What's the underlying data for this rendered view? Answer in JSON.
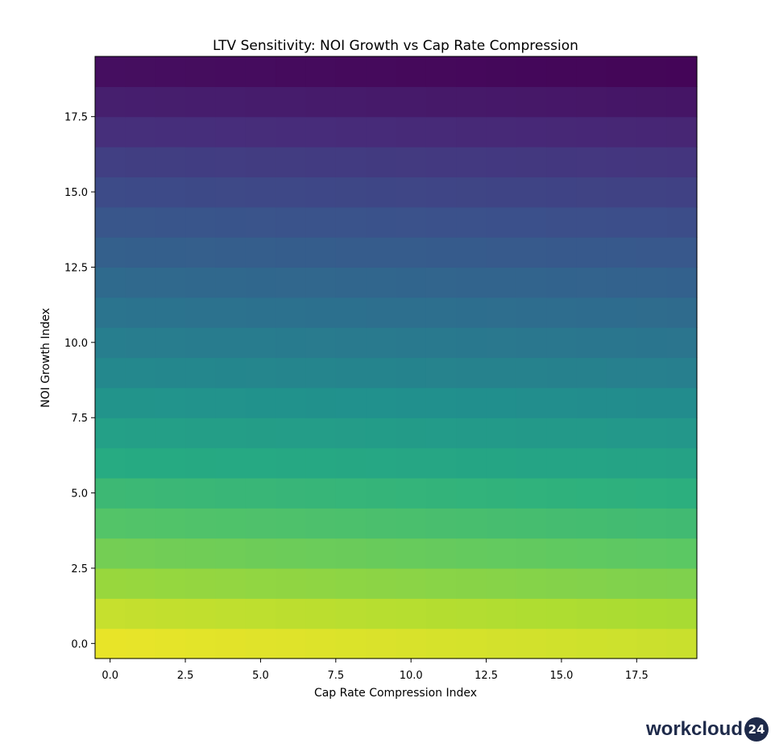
{
  "brand": {
    "name": "workcloud",
    "mark": "24"
  },
  "chart_data": {
    "type": "heatmap",
    "title": "LTV Sensitivity: NOI Growth vs Cap Rate Compression",
    "xlabel": "Cap Rate Compression Index",
    "ylabel": "NOI Growth Index",
    "xlim": [
      -0.5,
      19.5
    ],
    "ylim": [
      -0.5,
      19.5
    ],
    "origin": "lower",
    "colormap": "viridis",
    "grid": false,
    "colorbar": false,
    "x_ticks": [
      0.0,
      2.5,
      5.0,
      7.5,
      10.0,
      12.5,
      15.0,
      17.5
    ],
    "x_tick_labels": [
      "0.0",
      "2.5",
      "5.0",
      "7.5",
      "10.0",
      "12.5",
      "15.0",
      "17.5"
    ],
    "y_ticks": [
      0.0,
      2.5,
      5.0,
      7.5,
      10.0,
      12.5,
      15.0,
      17.5
    ],
    "y_tick_labels": [
      "0.0",
      "2.5",
      "5.0",
      "7.5",
      "10.0",
      "12.5",
      "15.0",
      "17.5"
    ],
    "rows": 20,
    "cols": 20,
    "value_range": [
      0,
      1
    ],
    "row_base_values": [
      0.97,
      0.92,
      0.85,
      0.79,
      0.73,
      0.68,
      0.62,
      0.57,
      0.52,
      0.47,
      0.43,
      0.39,
      0.35,
      0.31,
      0.27,
      0.23,
      0.19,
      0.14,
      0.09,
      0.04
    ],
    "col_decline": 0.045,
    "note_axes": "rows indexed by NOI Growth Index (y), columns by Cap Rate Compression Index (x)"
  }
}
